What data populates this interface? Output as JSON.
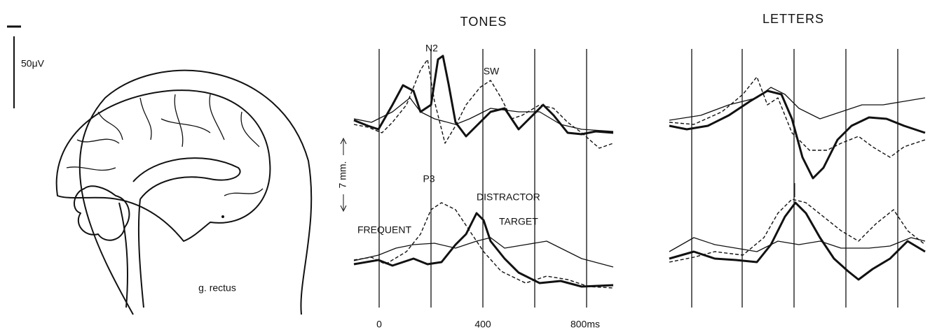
{
  "scale_bar": {
    "label": "50μV"
  },
  "brain": {
    "label": "g. rectus"
  },
  "tones": {
    "title": "TONES",
    "components": {
      "n2": "N2",
      "sw": "SW",
      "p3": "P3"
    },
    "conditions": {
      "distractor": "DISTRACTOR",
      "target": "TARGET",
      "frequent": "FREQUENT"
    },
    "amplitude_scale": "7 mm.",
    "time_labels": [
      "0",
      "400",
      "800ms"
    ]
  },
  "letters": {
    "title": "LETTERS"
  }
}
